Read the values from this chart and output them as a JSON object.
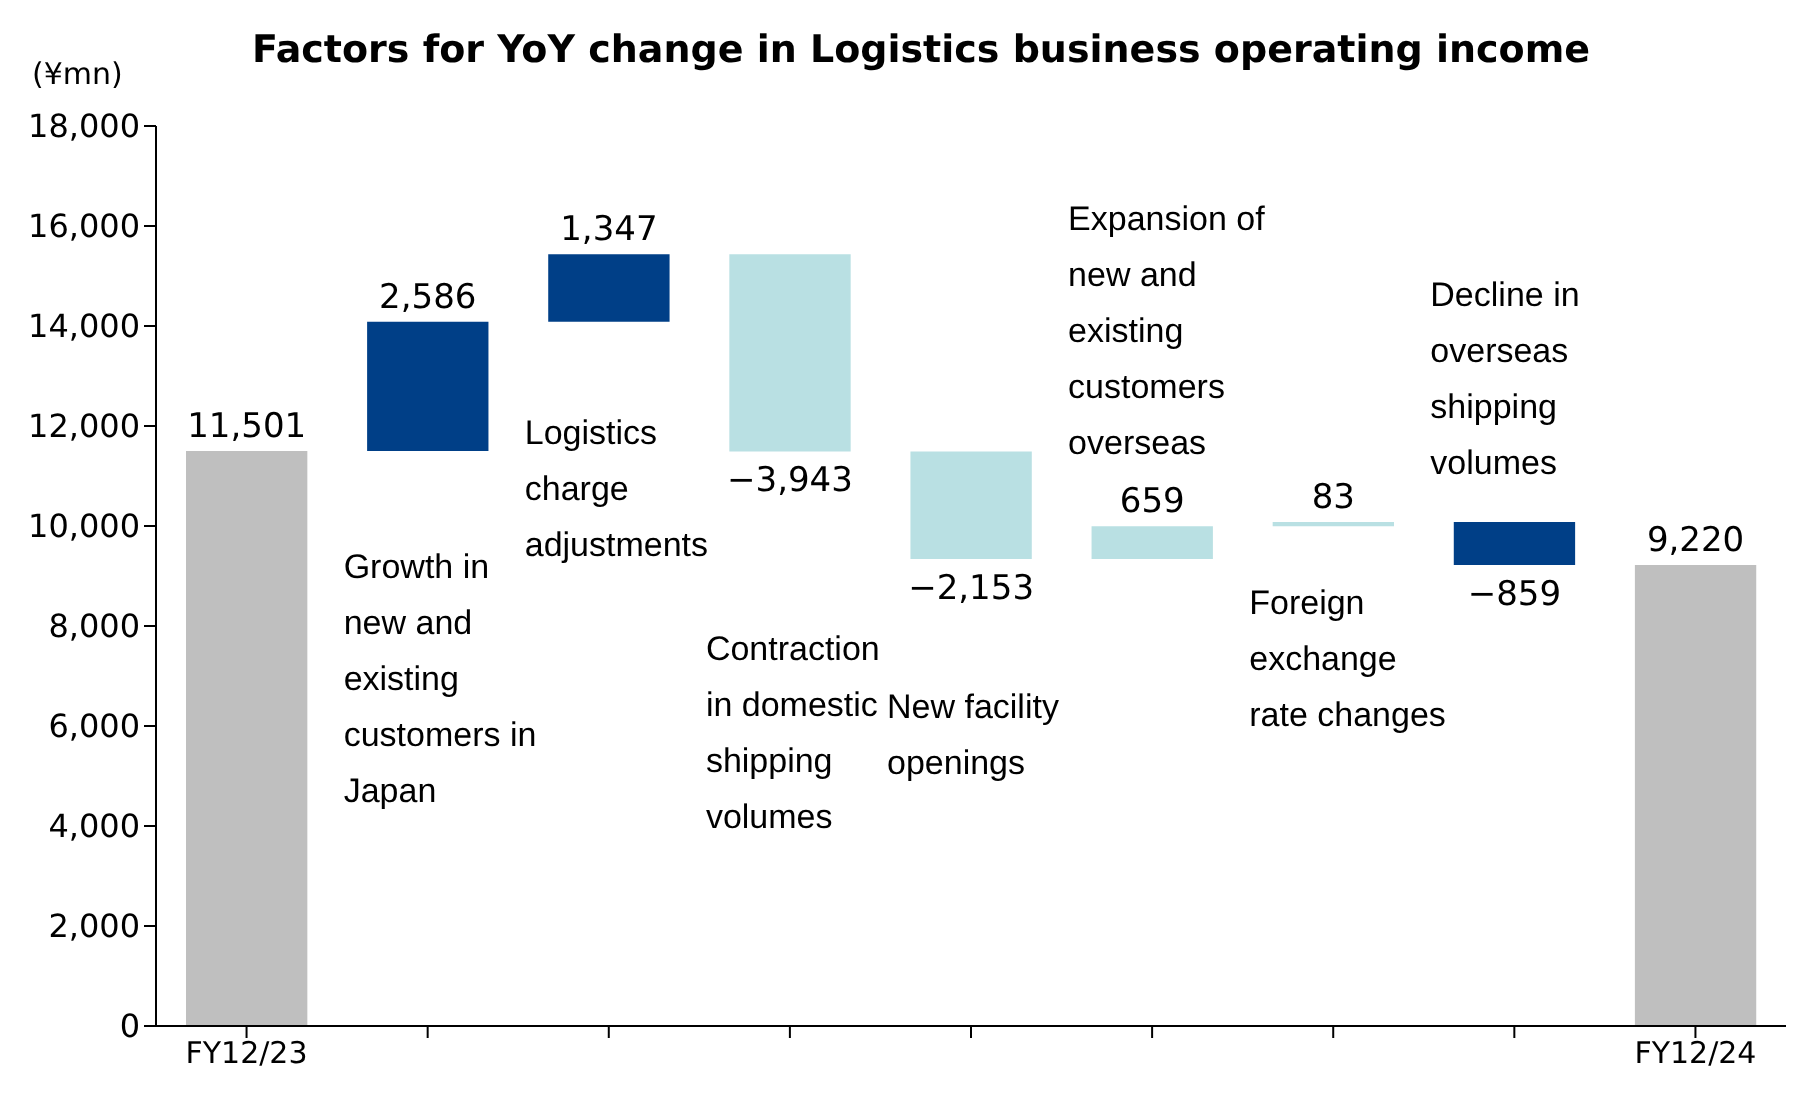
{
  "chart_data": {
    "type": "bar",
    "title": "Factors for YoY change in Logistics business operating income",
    "ylabel": "(¥mn)",
    "categories": [
      "FY12/23",
      null,
      null,
      null,
      null,
      null,
      null,
      null,
      "FY12/24"
    ],
    "values": [
      11501,
      2586,
      1347,
      -3943,
      -2153,
      659,
      83,
      -859,
      9220
    ],
    "base": [
      0,
      11501,
      14087,
      15434,
      11491,
      9338,
      9997,
      10080,
      0
    ],
    "colors": [
      "#bfbfbf",
      "#003f87",
      "#003f87",
      "#b9e0e3",
      "#b9e0e3",
      "#b9e0e3",
      "#b9e0e3",
      "#003f87",
      "#bfbfbf"
    ],
    "value_labels": [
      "11,501",
      "2,586",
      "1,347",
      "−3,943",
      "−2,153",
      "659",
      "83",
      "−859",
      "9,220"
    ],
    "ylim": [
      0,
      18000
    ],
    "yticks": [
      {
        "value": 0,
        "label": "0"
      },
      {
        "value": 2000,
        "label": "2,000"
      },
      {
        "value": 4000,
        "label": "4,000"
      },
      {
        "value": 6000,
        "label": "6,000"
      },
      {
        "value": 8000,
        "label": "8,000"
      },
      {
        "value": 10000,
        "label": "10,000"
      },
      {
        "value": 12000,
        "label": "12,000"
      },
      {
        "value": 14000,
        "label": "14,000"
      },
      {
        "value": 16000,
        "label": "16,000"
      },
      {
        "value": 18000,
        "label": "18,000"
      }
    ],
    "grid": false,
    "legend": false,
    "annotations": [
      "Growth in new and existing customers in Japan",
      "Logistics charge adjustments",
      "Contraction in domestic shipping volumes",
      "New facility openings",
      "Expansion of new and existing customers overseas",
      "Foreign exchange rate changes",
      "Decline in overseas shipping volumes"
    ]
  }
}
